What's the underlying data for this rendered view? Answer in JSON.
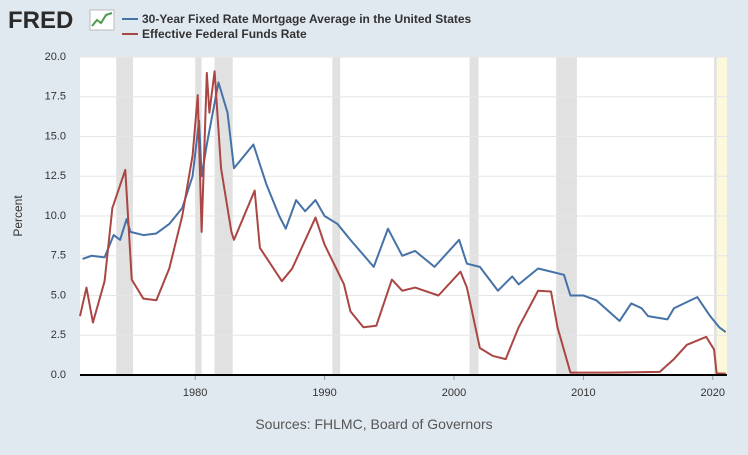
{
  "logo": "FRED",
  "chart_data": {
    "type": "line",
    "ylabel": "Percent",
    "source": "Sources: FHLMC, Board of Governors",
    "xlim": [
      1971.1,
      2021.1
    ],
    "ylim": [
      0,
      20
    ],
    "xticks": [
      1980,
      1990,
      2000,
      2010,
      2020
    ],
    "yticks": [
      {
        "value": 0,
        "label": "0.0"
      },
      {
        "value": 2.5,
        "label": "2.5"
      },
      {
        "value": 5,
        "label": "5.0"
      },
      {
        "value": 7.5,
        "label": "7.5"
      },
      {
        "value": 10,
        "label": "10.0"
      },
      {
        "value": 12.5,
        "label": "12.5"
      },
      {
        "value": 15,
        "label": "15.0"
      },
      {
        "value": 17.5,
        "label": "17.5"
      },
      {
        "value": 20,
        "label": "20.0"
      }
    ],
    "grid": true,
    "recessions": [
      [
        1973.9,
        1975.2
      ],
      [
        1980.0,
        1980.5
      ],
      [
        1981.5,
        1982.9
      ],
      [
        1990.6,
        1991.2
      ],
      [
        2001.2,
        2001.9
      ],
      [
        2007.9,
        2009.5
      ],
      [
        2020.1,
        2020.3
      ]
    ],
    "highlight": [
      2020.2,
      2021.1
    ],
    "series": [
      {
        "name": "30-Year Fixed Rate Mortgage Average in the United States",
        "color": "#4572a7",
        "x": [
          1971.3,
          1972,
          1973,
          1973.7,
          1974.2,
          1974.7,
          1975,
          1976,
          1977,
          1978,
          1979,
          1979.8,
          1980.3,
          1980.5,
          1980.9,
          1981.8,
          1982.5,
          1983,
          1984.5,
          1985.5,
          1986.5,
          1987,
          1987.8,
          1988.5,
          1989.3,
          1990,
          1991,
          1992,
          1993.8,
          1994.9,
          1996,
          1997,
          1998.5,
          2000.4,
          2001,
          2002,
          2003.4,
          2004.5,
          2005,
          2006.5,
          2007.5,
          2008.5,
          2009,
          2010,
          2011,
          2012.8,
          2013.7,
          2014.5,
          2015,
          2016.5,
          2017,
          2018.8,
          2019.8,
          2020.5,
          2021.0
        ],
        "values": [
          7.3,
          7.5,
          7.4,
          8.8,
          8.5,
          9.8,
          9.0,
          8.8,
          8.9,
          9.5,
          10.5,
          12.5,
          16.0,
          12.5,
          14.5,
          18.4,
          16.5,
          13.0,
          14.5,
          12.0,
          10.0,
          9.2,
          11.0,
          10.3,
          11.0,
          10.0,
          9.5,
          8.5,
          6.8,
          9.2,
          7.5,
          7.8,
          6.8,
          8.5,
          7.0,
          6.8,
          5.3,
          6.2,
          5.7,
          6.7,
          6.5,
          6.3,
          5.0,
          5.0,
          4.7,
          3.4,
          4.5,
          4.2,
          3.7,
          3.5,
          4.2,
          4.9,
          3.7,
          3.0,
          2.7
        ]
      },
      {
        "name": "Effective Federal Funds Rate",
        "color": "#aa4643",
        "x": [
          1971.1,
          1971.6,
          1972.1,
          1973,
          1973.6,
          1974.6,
          1975.1,
          1976,
          1977,
          1978,
          1979,
          1979.8,
          1980.2,
          1980.5,
          1980.9,
          1981.1,
          1981.5,
          1982,
          1982.8,
          1983,
          1984.6,
          1985,
          1986.7,
          1987.5,
          1989.3,
          1990,
          1991.5,
          1992,
          1993,
          1994,
          1995.2,
          1996,
          1997,
          1998.8,
          2000.5,
          2001,
          2002,
          2003,
          2004,
          2005,
          2006.5,
          2007.5,
          2008,
          2009,
          2012,
          2015.9,
          2017,
          2018,
          2019.5,
          2020.1,
          2020.3,
          2021.0
        ],
        "values": [
          3.7,
          5.5,
          3.3,
          5.9,
          10.5,
          12.9,
          6.0,
          4.8,
          4.7,
          6.7,
          10.0,
          13.8,
          17.6,
          9.0,
          19.0,
          16.5,
          19.1,
          13.0,
          9.0,
          8.5,
          11.6,
          8.0,
          5.9,
          6.7,
          9.9,
          8.2,
          5.7,
          4.0,
          3.0,
          3.1,
          6.0,
          5.3,
          5.5,
          5.0,
          6.5,
          5.5,
          1.7,
          1.2,
          1.0,
          3.0,
          5.3,
          5.25,
          3.0,
          0.15,
          0.15,
          0.2,
          1.0,
          1.9,
          2.4,
          1.6,
          0.1,
          0.09
        ]
      }
    ]
  }
}
